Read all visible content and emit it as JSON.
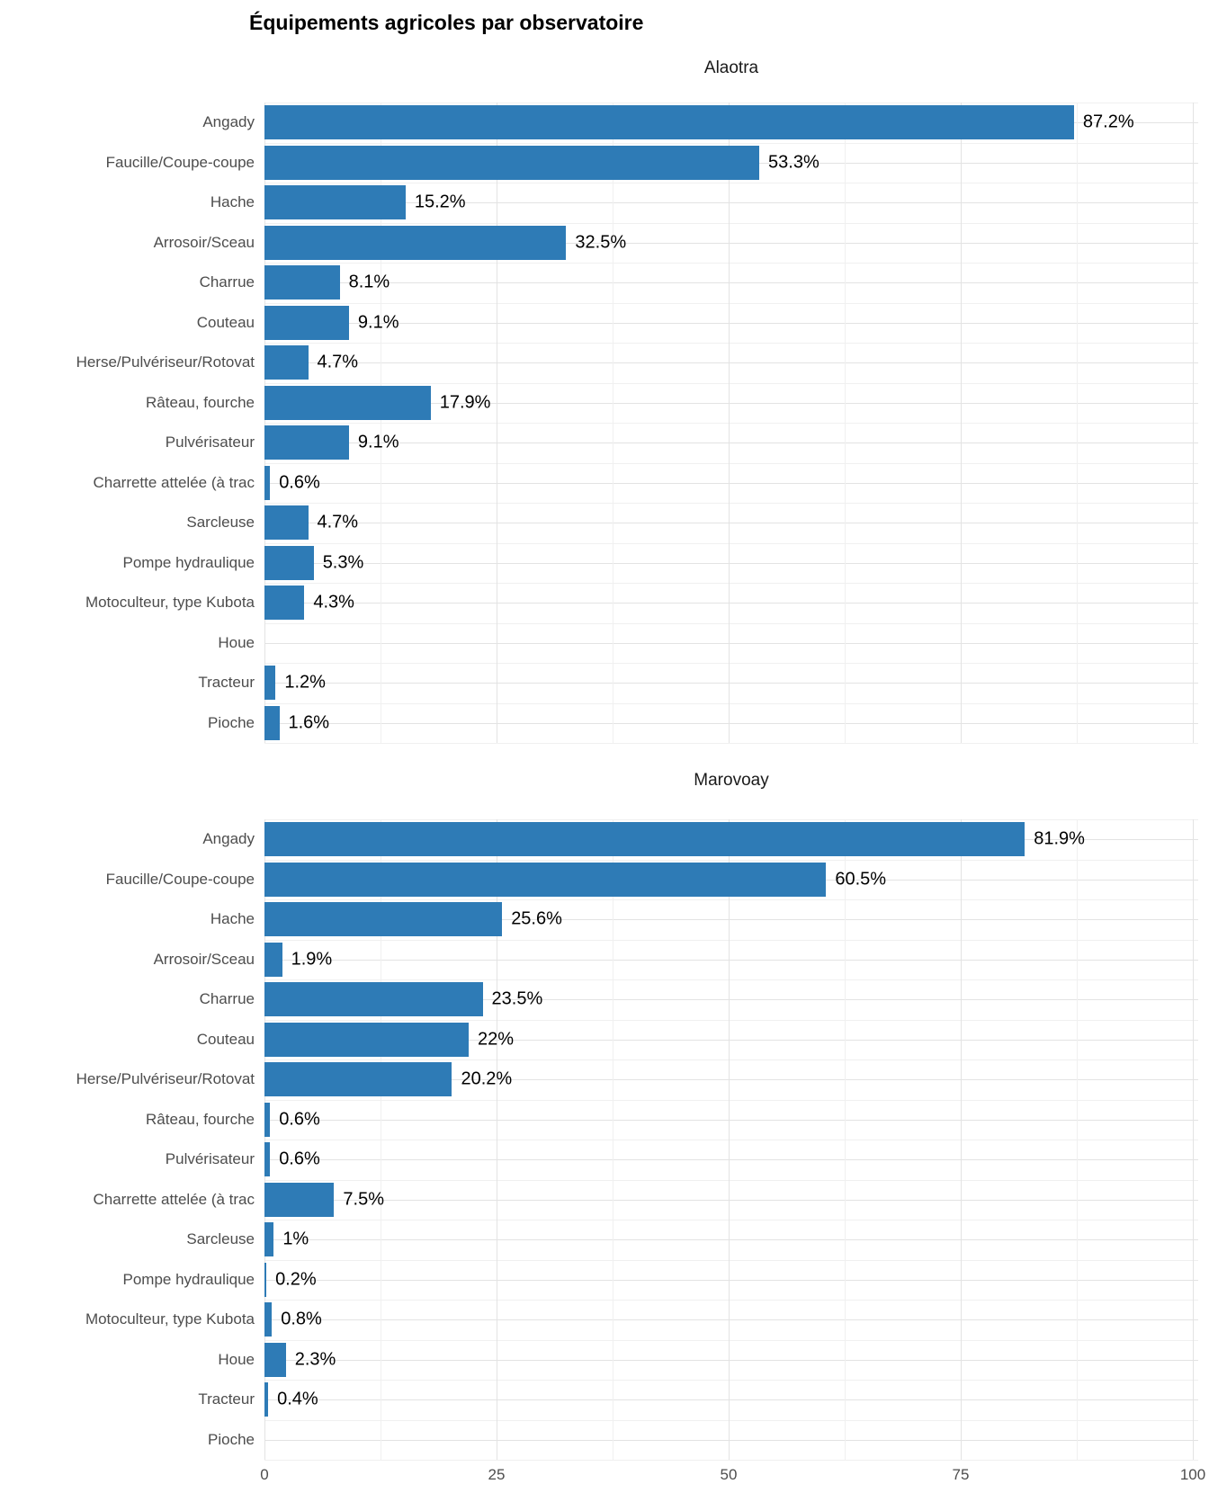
{
  "title": "Équipements agricoles par observatoire",
  "colors": {
    "bar": "#2e7bb6",
    "axis_text": "#4d4d4d",
    "grid_major": "#e3e3e3",
    "grid_minor": "#f0f0f0",
    "value_label": "#000000"
  },
  "chart_data": {
    "type": "bar",
    "orientation": "horizontal",
    "title": "Équipements agricoles par observatoire",
    "xlabel": "",
    "ylabel": "",
    "xlim": [
      0,
      100
    ],
    "x_ticks": [
      "0",
      "25",
      "50",
      "75",
      "100"
    ],
    "x_tick_values": [
      0,
      25,
      50,
      75,
      100
    ],
    "x_minor_values": [
      12.5,
      37.5,
      62.5,
      87.5
    ],
    "grid": true,
    "legend_position": "none",
    "facets": [
      "Alaotra",
      "Marovoay"
    ],
    "categories": [
      "Angady",
      "Faucille/Coupe-coupe",
      "Hache",
      "Arrosoir/Sceau",
      "Charrue",
      "Couteau",
      "Herse/Pulvériseur/Rotovat",
      "Râteau, fourche",
      "Pulvérisateur",
      "Charrette attelée (à trac",
      "Sarcleuse",
      "Pompe hydraulique",
      "Motoculteur, type Kubota",
      "Houe",
      "Tracteur",
      "Pioche"
    ],
    "series": [
      {
        "name": "Alaotra",
        "values": [
          87.2,
          53.3,
          15.2,
          32.5,
          8.1,
          9.1,
          4.7,
          17.9,
          9.1,
          0.6,
          4.7,
          5.3,
          4.3,
          null,
          1.2,
          1.6
        ],
        "labels": [
          "87.2%",
          "53.3%",
          "15.2%",
          "32.5%",
          "8.1%",
          "9.1%",
          "4.7%",
          "17.9%",
          "9.1%",
          "0.6%",
          "4.7%",
          "5.3%",
          "4.3%",
          "",
          "1.2%",
          "1.6%"
        ]
      },
      {
        "name": "Marovoay",
        "values": [
          81.9,
          60.5,
          25.6,
          1.9,
          23.5,
          22,
          20.2,
          0.6,
          0.6,
          7.5,
          1,
          0.2,
          0.8,
          2.3,
          0.4,
          null
        ],
        "labels": [
          "81.9%",
          "60.5%",
          "25.6%",
          "1.9%",
          "23.5%",
          "22%",
          "20.2%",
          "0.6%",
          "0.6%",
          "7.5%",
          "1%",
          "0.2%",
          "0.8%",
          "2.3%",
          "0.4%",
          ""
        ]
      }
    ]
  }
}
